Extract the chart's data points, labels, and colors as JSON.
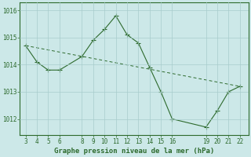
{
  "x": [
    3,
    4,
    5,
    6,
    8,
    9,
    10,
    11,
    12,
    13,
    14,
    15,
    16,
    19,
    20,
    21,
    22
  ],
  "y": [
    1014.7,
    1014.1,
    1013.8,
    1013.8,
    1014.3,
    1014.9,
    1015.3,
    1015.8,
    1015.1,
    1014.8,
    1013.9,
    1013.0,
    1012.0,
    1011.7,
    1012.3,
    1013.0,
    1013.2
  ],
  "trend_x": [
    3,
    22
  ],
  "trend_y": [
    1014.7,
    1013.2
  ],
  "line_color": "#2d6a2d",
  "marker": "+",
  "marker_size": 4,
  "bg_color": "#cce8e8",
  "grid_color": "#a8cccc",
  "title": "Graphe pression niveau de la mer (hPa)",
  "xticks": [
    3,
    4,
    5,
    6,
    8,
    9,
    10,
    11,
    12,
    13,
    14,
    15,
    16,
    19,
    20,
    21,
    22
  ],
  "yticks": [
    1012,
    1013,
    1014,
    1015,
    1016
  ],
  "ylim": [
    1011.4,
    1016.3
  ],
  "xlim": [
    2.5,
    22.8
  ],
  "tick_fontsize": 5.5,
  "title_fontsize": 6.5
}
